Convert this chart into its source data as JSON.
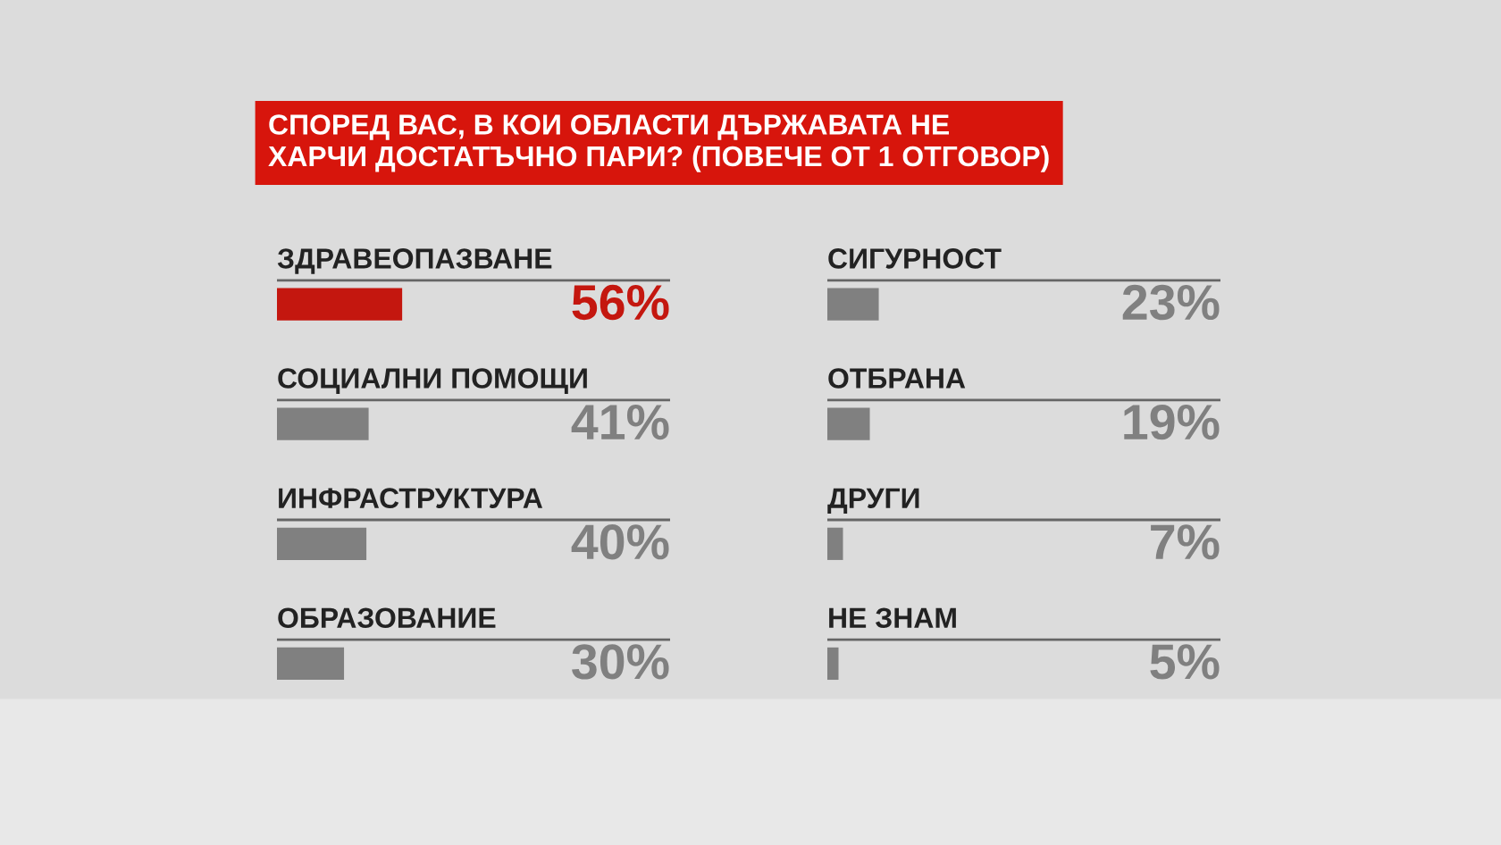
{
  "chart_data": [
    {
      "type": "bar",
      "orientation": "horizontal",
      "title": "СПОРЕД ВАС, В КОИ ОБЛАСТИ ДЪРЖАВАТА НЕ\nХАРЧИ ДОСТАТЪЧНО ПАРИ? (ПОВЕЧЕ ОТ 1 ОТГОВОР)",
      "categories": [
        "ЗДРАВЕОПАЗВАНЕ",
        "СОЦИАЛНИ ПОМОЩИ",
        "ИНФРАСТРУКТУРА",
        "ОБРАЗОВАНИЕ"
      ],
      "values": [
        56,
        41,
        40,
        30
      ],
      "value_labels": [
        "56%",
        "41%",
        "40%",
        "30%"
      ],
      "colors": [
        "#c4170f",
        "#808080",
        "#808080",
        "#808080"
      ]
    },
    {
      "type": "bar",
      "orientation": "horizontal",
      "categories": [
        "СИГУРНОСТ",
        "ОТБРАНА",
        "ДРУГИ",
        "НЕ ЗНАМ"
      ],
      "values": [
        23,
        19,
        7,
        5
      ],
      "value_labels": [
        "23%",
        "19%",
        "7%",
        "5%"
      ],
      "colors": [
        "#808080",
        "#808080",
        "#808080",
        "#808080"
      ]
    }
  ]
}
